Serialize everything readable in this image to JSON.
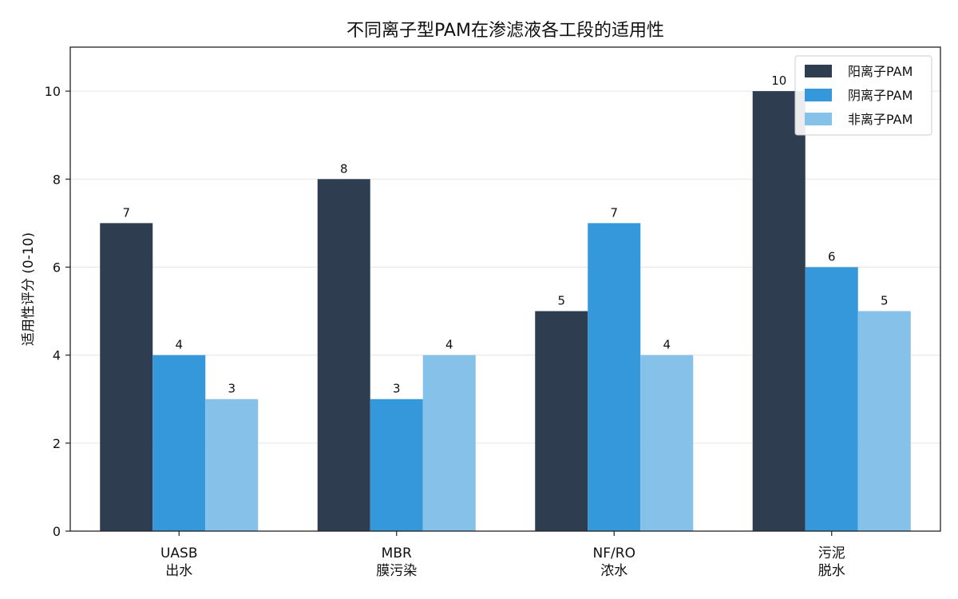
{
  "colors": {
    "background": "#ffffff",
    "axis": "#222222",
    "grid": "#e6e6e6"
  },
  "chart_data": {
    "type": "bar",
    "title": "不同离子型PAM在渗滤液各工段的适用性",
    "xlabel": "",
    "ylabel": "适用性评分 (0-10)",
    "categories": [
      [
        "UASB",
        "出水"
      ],
      [
        "MBR",
        "膜污染"
      ],
      [
        "NF/RO",
        "浓水"
      ],
      [
        "污泥",
        "脱水"
      ]
    ],
    "series": [
      {
        "name": "阳离子PAM",
        "color": "#2e3e50",
        "values": [
          7,
          8,
          5,
          10
        ]
      },
      {
        "name": "阴离子PAM",
        "color": "#3598db",
        "values": [
          4,
          3,
          7,
          6
        ]
      },
      {
        "name": "非离子PAM",
        "color": "#86c1e9",
        "values": [
          3,
          4,
          4,
          5
        ]
      }
    ],
    "ylim": [
      0,
      11
    ],
    "yticks": [
      0,
      2,
      4,
      6,
      8,
      10
    ],
    "grid": "y",
    "legend": "top-right",
    "data_labels": true
  }
}
